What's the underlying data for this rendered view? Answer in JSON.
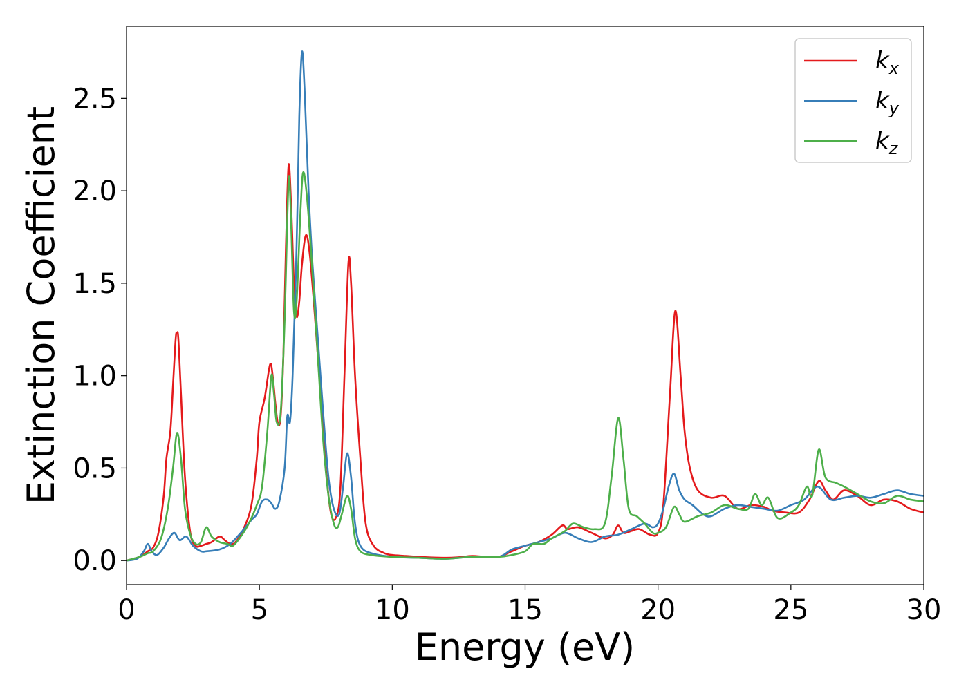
{
  "chart_data": {
    "type": "line",
    "xlabel": "Energy (eV)",
    "ylabel": "Extinction Coefficient",
    "xlim": [
      0,
      30
    ],
    "ylim": [
      -0.13,
      2.89
    ],
    "xticks": [
      0,
      5,
      10,
      15,
      20,
      25,
      30
    ],
    "xtick_labels": [
      "0",
      "5",
      "10",
      "15",
      "20",
      "25",
      "30"
    ],
    "yticks": [
      0.0,
      0.5,
      1.0,
      1.5,
      2.0,
      2.5
    ],
    "ytick_labels": [
      "0.0",
      "0.5",
      "1.0",
      "1.5",
      "2.0",
      "2.5"
    ],
    "grid": false,
    "legend_position": "top-right",
    "series": [
      {
        "name": "k",
        "subscript": "x",
        "color": "#e41a1c",
        "points": [
          [
            0,
            0
          ],
          [
            0.5,
            0.02
          ],
          [
            0.8,
            0.05
          ],
          [
            1.0,
            0.07
          ],
          [
            1.2,
            0.15
          ],
          [
            1.4,
            0.35
          ],
          [
            1.5,
            0.55
          ],
          [
            1.65,
            0.7
          ],
          [
            1.75,
            0.95
          ],
          [
            1.85,
            1.2
          ],
          [
            1.9,
            1.23
          ],
          [
            1.95,
            1.2
          ],
          [
            2.05,
            0.9
          ],
          [
            2.2,
            0.45
          ],
          [
            2.4,
            0.15
          ],
          [
            2.6,
            0.08
          ],
          [
            2.8,
            0.08
          ],
          [
            3.0,
            0.09
          ],
          [
            3.2,
            0.1
          ],
          [
            3.5,
            0.13
          ],
          [
            3.7,
            0.11
          ],
          [
            3.9,
            0.09
          ],
          [
            4.1,
            0.1
          ],
          [
            4.4,
            0.17
          ],
          [
            4.7,
            0.3
          ],
          [
            4.9,
            0.55
          ],
          [
            5.0,
            0.75
          ],
          [
            5.2,
            0.88
          ],
          [
            5.4,
            1.06
          ],
          [
            5.5,
            1.0
          ],
          [
            5.6,
            0.85
          ],
          [
            5.7,
            0.74
          ],
          [
            5.8,
            0.78
          ],
          [
            5.9,
            1.1
          ],
          [
            6.0,
            1.7
          ],
          [
            6.1,
            2.14
          ],
          [
            6.2,
            1.9
          ],
          [
            6.3,
            1.5
          ],
          [
            6.4,
            1.32
          ],
          [
            6.5,
            1.4
          ],
          [
            6.6,
            1.6
          ],
          [
            6.75,
            1.76
          ],
          [
            6.9,
            1.65
          ],
          [
            7.1,
            1.3
          ],
          [
            7.3,
            0.9
          ],
          [
            7.5,
            0.5
          ],
          [
            7.7,
            0.25
          ],
          [
            7.9,
            0.24
          ],
          [
            8.05,
            0.4
          ],
          [
            8.2,
            1.0
          ],
          [
            8.35,
            1.61
          ],
          [
            8.45,
            1.5
          ],
          [
            8.6,
            1.0
          ],
          [
            8.8,
            0.55
          ],
          [
            9.0,
            0.2
          ],
          [
            9.3,
            0.08
          ],
          [
            9.7,
            0.04
          ],
          [
            10.0,
            0.03
          ],
          [
            10.5,
            0.025
          ],
          [
            11,
            0.02
          ],
          [
            12,
            0.015
          ],
          [
            12.5,
            0.018
          ],
          [
            13.0,
            0.025
          ],
          [
            13.5,
            0.02
          ],
          [
            14.0,
            0.02
          ],
          [
            14.5,
            0.05
          ],
          [
            15.0,
            0.08
          ],
          [
            15.5,
            0.1
          ],
          [
            16.0,
            0.14
          ],
          [
            16.4,
            0.19
          ],
          [
            16.6,
            0.17
          ],
          [
            17.0,
            0.18
          ],
          [
            17.5,
            0.15
          ],
          [
            18.0,
            0.12
          ],
          [
            18.3,
            0.14
          ],
          [
            18.5,
            0.19
          ],
          [
            18.7,
            0.15
          ],
          [
            19.0,
            0.16
          ],
          [
            19.3,
            0.17
          ],
          [
            19.7,
            0.14
          ],
          [
            20.0,
            0.15
          ],
          [
            20.2,
            0.3
          ],
          [
            20.45,
            0.9
          ],
          [
            20.65,
            1.35
          ],
          [
            20.85,
            1.0
          ],
          [
            21.0,
            0.7
          ],
          [
            21.2,
            0.5
          ],
          [
            21.5,
            0.38
          ],
          [
            22.0,
            0.34
          ],
          [
            22.5,
            0.35
          ],
          [
            23.0,
            0.28
          ],
          [
            23.5,
            0.3
          ],
          [
            24.0,
            0.29
          ],
          [
            24.3,
            0.27
          ],
          [
            24.8,
            0.26
          ],
          [
            25.3,
            0.26
          ],
          [
            25.7,
            0.33
          ],
          [
            26.05,
            0.43
          ],
          [
            26.3,
            0.38
          ],
          [
            26.6,
            0.33
          ],
          [
            27.0,
            0.38
          ],
          [
            27.5,
            0.35
          ],
          [
            28.0,
            0.3
          ],
          [
            28.5,
            0.33
          ],
          [
            29.0,
            0.32
          ],
          [
            29.5,
            0.28
          ],
          [
            30.0,
            0.26
          ]
        ]
      },
      {
        "name": "k",
        "subscript": "y",
        "color": "#377eb8",
        "points": [
          [
            0,
            0
          ],
          [
            0.4,
            0.01
          ],
          [
            0.65,
            0.05
          ],
          [
            0.8,
            0.09
          ],
          [
            0.95,
            0.05
          ],
          [
            1.15,
            0.03
          ],
          [
            1.4,
            0.07
          ],
          [
            1.6,
            0.12
          ],
          [
            1.8,
            0.15
          ],
          [
            2.0,
            0.11
          ],
          [
            2.25,
            0.13
          ],
          [
            2.5,
            0.08
          ],
          [
            2.8,
            0.05
          ],
          [
            3.0,
            0.05
          ],
          [
            3.5,
            0.06
          ],
          [
            3.9,
            0.09
          ],
          [
            4.3,
            0.15
          ],
          [
            4.7,
            0.22
          ],
          [
            4.9,
            0.25
          ],
          [
            5.1,
            0.32
          ],
          [
            5.3,
            0.33
          ],
          [
            5.45,
            0.31
          ],
          [
            5.6,
            0.28
          ],
          [
            5.75,
            0.32
          ],
          [
            5.95,
            0.5
          ],
          [
            6.05,
            0.78
          ],
          [
            6.15,
            0.75
          ],
          [
            6.25,
            1.0
          ],
          [
            6.4,
            1.7
          ],
          [
            6.5,
            2.4
          ],
          [
            6.6,
            2.75
          ],
          [
            6.7,
            2.55
          ],
          [
            6.85,
            2.0
          ],
          [
            7.0,
            1.6
          ],
          [
            7.2,
            1.2
          ],
          [
            7.4,
            0.8
          ],
          [
            7.6,
            0.45
          ],
          [
            7.8,
            0.28
          ],
          [
            8.0,
            0.25
          ],
          [
            8.15,
            0.4
          ],
          [
            8.3,
            0.58
          ],
          [
            8.45,
            0.45
          ],
          [
            8.6,
            0.2
          ],
          [
            8.8,
            0.08
          ],
          [
            9.2,
            0.04
          ],
          [
            10.0,
            0.02
          ],
          [
            11.0,
            0.015
          ],
          [
            12.0,
            0.01
          ],
          [
            13.0,
            0.02
          ],
          [
            14.0,
            0.02
          ],
          [
            14.5,
            0.06
          ],
          [
            15.0,
            0.08
          ],
          [
            15.5,
            0.1
          ],
          [
            16.0,
            0.12
          ],
          [
            16.5,
            0.15
          ],
          [
            17.0,
            0.12
          ],
          [
            17.5,
            0.1
          ],
          [
            18.0,
            0.13
          ],
          [
            18.5,
            0.14
          ],
          [
            19.0,
            0.17
          ],
          [
            19.5,
            0.2
          ],
          [
            19.8,
            0.18
          ],
          [
            20.0,
            0.2
          ],
          [
            20.2,
            0.28
          ],
          [
            20.4,
            0.4
          ],
          [
            20.6,
            0.47
          ],
          [
            20.8,
            0.38
          ],
          [
            21.0,
            0.33
          ],
          [
            21.3,
            0.3
          ],
          [
            21.7,
            0.25
          ],
          [
            22.0,
            0.24
          ],
          [
            22.5,
            0.28
          ],
          [
            23.0,
            0.3
          ],
          [
            23.5,
            0.29
          ],
          [
            24.0,
            0.28
          ],
          [
            24.5,
            0.27
          ],
          [
            25.0,
            0.3
          ],
          [
            25.5,
            0.33
          ],
          [
            26.0,
            0.4
          ],
          [
            26.5,
            0.33
          ],
          [
            27.0,
            0.34
          ],
          [
            27.5,
            0.35
          ],
          [
            28.0,
            0.34
          ],
          [
            28.5,
            0.36
          ],
          [
            29.0,
            0.38
          ],
          [
            29.5,
            0.36
          ],
          [
            30.0,
            0.35
          ]
        ]
      },
      {
        "name": "k",
        "subscript": "z",
        "color": "#4daf4a",
        "points": [
          [
            0,
            0
          ],
          [
            0.5,
            0.02
          ],
          [
            0.8,
            0.04
          ],
          [
            1.0,
            0.05
          ],
          [
            1.3,
            0.12
          ],
          [
            1.55,
            0.28
          ],
          [
            1.75,
            0.5
          ],
          [
            1.9,
            0.69
          ],
          [
            2.05,
            0.55
          ],
          [
            2.2,
            0.28
          ],
          [
            2.4,
            0.14
          ],
          [
            2.6,
            0.09
          ],
          [
            2.8,
            0.1
          ],
          [
            3.0,
            0.18
          ],
          [
            3.2,
            0.13
          ],
          [
            3.5,
            0.1
          ],
          [
            3.8,
            0.09
          ],
          [
            4.0,
            0.08
          ],
          [
            4.3,
            0.13
          ],
          [
            4.6,
            0.2
          ],
          [
            4.9,
            0.3
          ],
          [
            5.1,
            0.4
          ],
          [
            5.3,
            0.7
          ],
          [
            5.45,
            1.0
          ],
          [
            5.55,
            0.9
          ],
          [
            5.65,
            0.75
          ],
          [
            5.8,
            0.8
          ],
          [
            5.95,
            1.3
          ],
          [
            6.05,
            1.85
          ],
          [
            6.12,
            2.08
          ],
          [
            6.2,
            1.8
          ],
          [
            6.3,
            1.35
          ],
          [
            6.4,
            1.4
          ],
          [
            6.55,
            1.9
          ],
          [
            6.65,
            2.1
          ],
          [
            6.8,
            1.95
          ],
          [
            7.0,
            1.55
          ],
          [
            7.2,
            1.1
          ],
          [
            7.4,
            0.65
          ],
          [
            7.6,
            0.35
          ],
          [
            7.8,
            0.2
          ],
          [
            7.95,
            0.18
          ],
          [
            8.1,
            0.25
          ],
          [
            8.3,
            0.35
          ],
          [
            8.45,
            0.28
          ],
          [
            8.6,
            0.12
          ],
          [
            8.8,
            0.05
          ],
          [
            9.2,
            0.03
          ],
          [
            10.0,
            0.02
          ],
          [
            11.0,
            0.015
          ],
          [
            12.0,
            0.01
          ],
          [
            13.0,
            0.02
          ],
          [
            14.0,
            0.02
          ],
          [
            14.5,
            0.03
          ],
          [
            15.0,
            0.05
          ],
          [
            15.3,
            0.09
          ],
          [
            15.7,
            0.09
          ],
          [
            16.0,
            0.12
          ],
          [
            16.5,
            0.16
          ],
          [
            16.8,
            0.2
          ],
          [
            17.2,
            0.18
          ],
          [
            17.6,
            0.17
          ],
          [
            18.0,
            0.2
          ],
          [
            18.25,
            0.45
          ],
          [
            18.5,
            0.77
          ],
          [
            18.7,
            0.55
          ],
          [
            18.9,
            0.28
          ],
          [
            19.2,
            0.24
          ],
          [
            19.5,
            0.2
          ],
          [
            19.8,
            0.15
          ],
          [
            20.0,
            0.15
          ],
          [
            20.3,
            0.18
          ],
          [
            20.6,
            0.29
          ],
          [
            20.8,
            0.25
          ],
          [
            21.0,
            0.21
          ],
          [
            21.5,
            0.24
          ],
          [
            22.0,
            0.26
          ],
          [
            22.5,
            0.3
          ],
          [
            23.0,
            0.28
          ],
          [
            23.4,
            0.28
          ],
          [
            23.65,
            0.36
          ],
          [
            23.9,
            0.3
          ],
          [
            24.15,
            0.34
          ],
          [
            24.5,
            0.23
          ],
          [
            25.0,
            0.26
          ],
          [
            25.3,
            0.3
          ],
          [
            25.6,
            0.4
          ],
          [
            25.8,
            0.35
          ],
          [
            26.05,
            0.6
          ],
          [
            26.3,
            0.45
          ],
          [
            26.7,
            0.42
          ],
          [
            27.0,
            0.4
          ],
          [
            27.5,
            0.36
          ],
          [
            28.0,
            0.32
          ],
          [
            28.5,
            0.31
          ],
          [
            29.0,
            0.35
          ],
          [
            29.5,
            0.33
          ],
          [
            30.0,
            0.32
          ]
        ]
      }
    ]
  }
}
